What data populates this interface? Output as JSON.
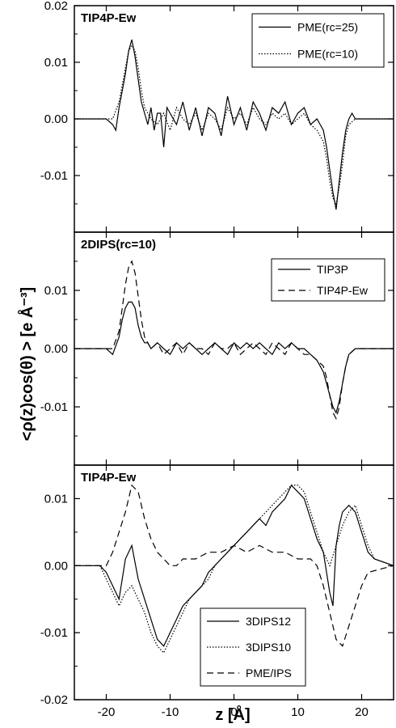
{
  "figure": {
    "ylabel": "<ρ(z)cos(θ) > [e Å⁻³]",
    "xlabel": "z [Å]"
  },
  "chart_data": [
    {
      "type": "line",
      "title": "TIP4P-Ew",
      "xlim": [
        -25,
        25
      ],
      "ylim": [
        -0.02,
        0.02
      ],
      "yticks": [
        -0.01,
        0.0,
        0.01,
        0.02
      ],
      "ytick_labels": [
        "-0.01",
        "0.00",
        "0.01",
        "0.02"
      ],
      "legend": "top-right",
      "series": [
        {
          "name": "PME(rc=25)",
          "style": "solid",
          "x": [
            -25,
            -20,
            -19,
            -18.5,
            -18,
            -17.5,
            -17,
            -16.5,
            -16,
            -15.5,
            -15,
            -14.5,
            -14,
            -13.5,
            -13,
            -12.5,
            -12,
            -11.5,
            -11,
            -10.5,
            -10,
            -9,
            -8,
            -7,
            -6,
            -5,
            -4,
            -3,
            -2,
            -1,
            0,
            1,
            2,
            3,
            4,
            5,
            6,
            7,
            8,
            9,
            10,
            11,
            12,
            13,
            14,
            14.5,
            15,
            15.5,
            16,
            16.5,
            17,
            17.5,
            18,
            18.5,
            19,
            20,
            21,
            25
          ],
          "y": [
            0.0,
            0.0,
            -0.001,
            -0.002,
            0.002,
            0.005,
            0.008,
            0.012,
            0.014,
            0.011,
            0.007,
            0.003,
            0.001,
            -0.001,
            0.002,
            -0.002,
            0.001,
            0.001,
            -0.005,
            0.002,
            0.001,
            -0.001,
            0.003,
            -0.002,
            0.002,
            -0.003,
            0.002,
            0.001,
            -0.003,
            0.004,
            -0.001,
            0.002,
            -0.002,
            0.003,
            0.001,
            -0.002,
            0.002,
            0.001,
            0.003,
            -0.001,
            0.001,
            0.002,
            -0.001,
            0.0,
            -0.002,
            -0.005,
            -0.009,
            -0.013,
            -0.016,
            -0.011,
            -0.006,
            -0.002,
            0.0,
            0.001,
            0.0,
            0.0,
            0.0,
            0.0
          ]
        },
        {
          "name": "PME(rc=10)",
          "style": "dotted",
          "x": [
            -25,
            -20,
            -19,
            -18,
            -17.5,
            -17,
            -16.5,
            -16,
            -15.5,
            -15,
            -14.5,
            -14,
            -13.5,
            -13,
            -12,
            -11,
            -10,
            -9,
            -8,
            -7,
            -6,
            -5,
            -4,
            -3,
            -2,
            -1,
            0,
            1,
            2,
            3,
            4,
            5,
            6,
            7,
            8,
            9,
            10,
            11,
            12,
            13,
            14,
            14.5,
            15,
            15.5,
            16,
            16.5,
            17,
            17.5,
            18,
            19,
            20,
            25
          ],
          "y": [
            0.0,
            0.0,
            0.0,
            0.003,
            0.006,
            0.009,
            0.012,
            0.013,
            0.012,
            0.009,
            0.005,
            0.002,
            0.001,
            0.0,
            -0.001,
            0.001,
            -0.002,
            0.002,
            0.0,
            -0.001,
            0.001,
            -0.002,
            0.001,
            0.0,
            -0.002,
            0.002,
            0.0,
            0.001,
            -0.001,
            0.002,
            0.0,
            -0.001,
            0.001,
            0.0,
            0.001,
            -0.001,
            0.0,
            0.001,
            -0.001,
            -0.002,
            -0.004,
            -0.007,
            -0.011,
            -0.014,
            -0.015,
            -0.012,
            -0.008,
            -0.003,
            -0.001,
            0.0,
            0.0,
            0.0
          ]
        }
      ]
    },
    {
      "type": "line",
      "title": "2DIPS(rc=10)",
      "xlim": [
        -25,
        25
      ],
      "ylim": [
        -0.02,
        0.02
      ],
      "yticks": [
        -0.01,
        0.0,
        0.01
      ],
      "ytick_labels": [
        "-0.01",
        "0.00",
        "0.01"
      ],
      "legend": "top-right",
      "series": [
        {
          "name": "TIP3P",
          "style": "solid",
          "x": [
            -25,
            -20,
            -19,
            -18,
            -17.5,
            -17,
            -16.5,
            -16,
            -15.5,
            -15,
            -14.5,
            -14,
            -13.5,
            -13,
            -12,
            -11,
            -10,
            -9,
            -8,
            -7,
            -6,
            -5,
            -4,
            -3,
            -2,
            -1,
            0,
            1,
            2,
            3,
            4,
            5,
            6,
            7,
            8,
            9,
            10,
            11,
            12,
            13,
            14,
            14.5,
            15,
            15.5,
            16,
            16.5,
            17,
            17.5,
            18,
            19,
            20,
            25
          ],
          "y": [
            0.0,
            0.0,
            -0.001,
            0.002,
            0.005,
            0.007,
            0.008,
            0.008,
            0.007,
            0.004,
            0.002,
            0.001,
            0.001,
            0.0,
            0.001,
            0.0,
            -0.001,
            0.001,
            0.0,
            0.001,
            0.0,
            -0.001,
            0.0,
            0.001,
            0.0,
            -0.001,
            0.001,
            0.0,
            0.001,
            0.0,
            0.001,
            0.0,
            -0.001,
            0.001,
            0.0,
            0.001,
            0.0,
            0.0,
            -0.001,
            -0.002,
            -0.004,
            -0.006,
            -0.008,
            -0.01,
            -0.011,
            -0.009,
            -0.006,
            -0.003,
            -0.001,
            0.0,
            0.0,
            0.0
          ]
        },
        {
          "name": "TIP4P-Ew",
          "style": "dashed",
          "x": [
            -25,
            -20,
            -19,
            -18,
            -17.5,
            -17,
            -16.5,
            -16,
            -15.5,
            -15,
            -14.5,
            -14,
            -13.5,
            -13,
            -12,
            -11,
            -10,
            -9,
            -8,
            -7,
            -6,
            -5,
            -4,
            -3,
            -2,
            -1,
            0,
            1,
            2,
            3,
            4,
            5,
            6,
            7,
            8,
            9,
            10,
            11,
            12,
            13,
            14,
            14.5,
            15,
            15.5,
            16,
            16.5,
            17,
            17.5,
            18,
            19,
            20,
            25
          ],
          "y": [
            0.0,
            0.0,
            0.0,
            0.003,
            0.007,
            0.011,
            0.014,
            0.015,
            0.013,
            0.009,
            0.005,
            0.002,
            0.001,
            0.0,
            0.001,
            -0.001,
            0.0,
            0.001,
            -0.001,
            0.001,
            0.0,
            0.0,
            -0.001,
            0.001,
            0.0,
            0.0,
            0.001,
            -0.001,
            0.0,
            0.001,
            0.0,
            -0.001,
            0.001,
            0.0,
            -0.001,
            0.001,
            0.0,
            -0.001,
            -0.001,
            -0.002,
            -0.003,
            -0.005,
            -0.008,
            -0.011,
            -0.012,
            -0.01,
            -0.006,
            -0.003,
            -0.001,
            0.0,
            0.0,
            0.0
          ]
        }
      ]
    },
    {
      "type": "line",
      "title": "TIP4P-Ew",
      "xlim": [
        -25,
        25
      ],
      "ylim": [
        -0.02,
        0.015
      ],
      "yticks": [
        -0.02,
        -0.01,
        0.0,
        0.01
      ],
      "ytick_labels": [
        "-0.02",
        "-0.01",
        "0.00",
        "0.01"
      ],
      "xticks": [
        -20,
        -10,
        0,
        10,
        20
      ],
      "xtick_labels": [
        "-20",
        "-10",
        "0",
        "10",
        "20"
      ],
      "legend": "bottom-right",
      "series": [
        {
          "name": "3DIPS12",
          "style": "solid",
          "x": [
            -25,
            -21,
            -20,
            -19,
            -18,
            -17,
            -16,
            -15,
            -14,
            -13,
            -12,
            -11,
            -10,
            -9,
            -8,
            -7,
            -6,
            -5,
            -4,
            -3,
            -2,
            -1,
            0,
            1,
            2,
            3,
            4,
            5,
            6,
            7,
            8,
            9,
            10,
            11,
            12,
            13,
            14,
            15,
            15.5,
            16,
            16.5,
            17,
            18,
            19,
            20,
            21,
            22,
            25
          ],
          "y": [
            0.0,
            0.0,
            -0.001,
            -0.003,
            -0.005,
            0.001,
            0.003,
            -0.002,
            -0.005,
            -0.008,
            -0.011,
            -0.012,
            -0.01,
            -0.008,
            -0.006,
            -0.005,
            -0.004,
            -0.003,
            -0.001,
            0.0,
            0.001,
            0.002,
            0.003,
            0.004,
            0.005,
            0.006,
            0.007,
            0.006,
            0.008,
            0.009,
            0.01,
            0.012,
            0.011,
            0.01,
            0.007,
            0.004,
            0.002,
            -0.004,
            -0.006,
            0.003,
            0.006,
            0.008,
            0.009,
            0.008,
            0.005,
            0.002,
            0.001,
            0.0
          ]
        },
        {
          "name": "3DIPS10",
          "style": "dotted",
          "x": [
            -25,
            -21,
            -20,
            -19,
            -18,
            -17,
            -16,
            -15,
            -14,
            -13,
            -12,
            -11,
            -10,
            -9,
            -8,
            -7,
            -6,
            -5,
            -4,
            -3,
            -2,
            -1,
            0,
            1,
            2,
            3,
            4,
            5,
            6,
            7,
            8,
            9,
            10,
            11,
            12,
            13,
            14,
            15,
            16,
            17,
            18,
            19,
            20,
            21,
            22,
            25
          ],
          "y": [
            0.0,
            0.0,
            -0.002,
            -0.004,
            -0.006,
            -0.004,
            -0.003,
            -0.005,
            -0.007,
            -0.01,
            -0.012,
            -0.013,
            -0.011,
            -0.009,
            -0.007,
            -0.005,
            -0.004,
            -0.003,
            -0.002,
            0.0,
            0.001,
            0.002,
            0.003,
            0.004,
            0.005,
            0.006,
            0.007,
            0.008,
            0.009,
            0.01,
            0.011,
            0.012,
            0.012,
            0.011,
            0.008,
            0.005,
            0.002,
            0.0,
            0.003,
            0.006,
            0.008,
            0.009,
            0.006,
            0.003,
            0.001,
            0.0
          ]
        },
        {
          "name": "PME/IPS",
          "style": "dashed",
          "x": [
            -25,
            -20,
            -19,
            -18,
            -17,
            -16,
            -15,
            -14,
            -13,
            -12,
            -11,
            -10,
            -9,
            -8,
            -6,
            -4,
            -2,
            0,
            2,
            4,
            6,
            8,
            10,
            12,
            13,
            14,
            15,
            16,
            17,
            18,
            19,
            20,
            21,
            25
          ],
          "y": [
            0.0,
            0.0,
            0.002,
            0.005,
            0.008,
            0.012,
            0.011,
            0.007,
            0.004,
            0.002,
            0.001,
            0.0,
            0.0,
            0.001,
            0.001,
            0.002,
            0.002,
            0.003,
            0.002,
            0.003,
            0.002,
            0.002,
            0.001,
            0.001,
            0.0,
            -0.003,
            -0.007,
            -0.011,
            -0.012,
            -0.009,
            -0.006,
            -0.003,
            -0.001,
            0.0
          ]
        }
      ]
    }
  ]
}
